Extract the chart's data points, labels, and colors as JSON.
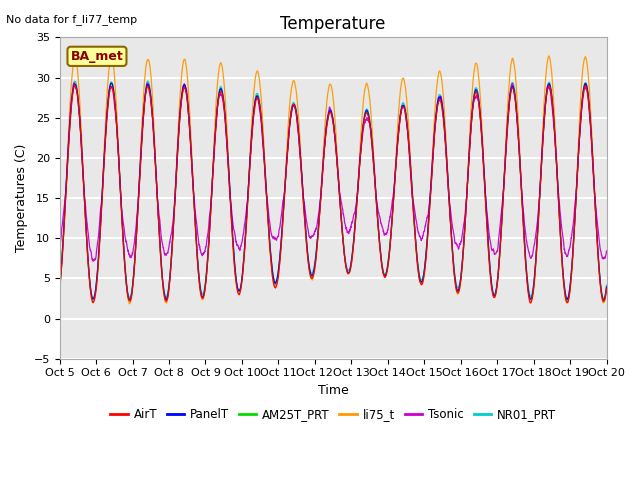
{
  "title": "Temperature",
  "xlabel": "Time",
  "ylabel": "Temperatures (C)",
  "annotation": "No data for f_li77_temp",
  "legend_label": "BA_met",
  "ylim": [
    -5,
    35
  ],
  "xlim": [
    0,
    15
  ],
  "yticks": [
    -5,
    0,
    5,
    10,
    15,
    20,
    25,
    30,
    35
  ],
  "xtick_labels": [
    "Oct 5",
    "Oct 6",
    "Oct 7",
    "Oct 8",
    "Oct 9",
    "Oct 10",
    "Oct 11",
    "Oct 12",
    "Oct 13",
    "Oct 14",
    "Oct 15",
    "Oct 16",
    "Oct 17",
    "Oct 18",
    "Oct 19",
    "Oct 20"
  ],
  "series_colors": {
    "AirT": "#ff0000",
    "PanelT": "#0000ff",
    "AM25T_PRT": "#00dd00",
    "li75_t": "#ff9900",
    "Tsonic": "#cc00cc",
    "NR01_PRT": "#00cccc"
  },
  "series_order": [
    "NR01_PRT",
    "AM25T_PRT",
    "li75_t",
    "Tsonic",
    "PanelT",
    "AirT"
  ],
  "legend_order": [
    "AirT",
    "PanelT",
    "AM25T_PRT",
    "li75_t",
    "Tsonic",
    "NR01_PRT"
  ],
  "background_color": "#e8e8e8",
  "grid_color": "#ffffff",
  "n_points": 3000,
  "title_fontsize": 12,
  "label_fontsize": 9,
  "tick_fontsize": 8
}
